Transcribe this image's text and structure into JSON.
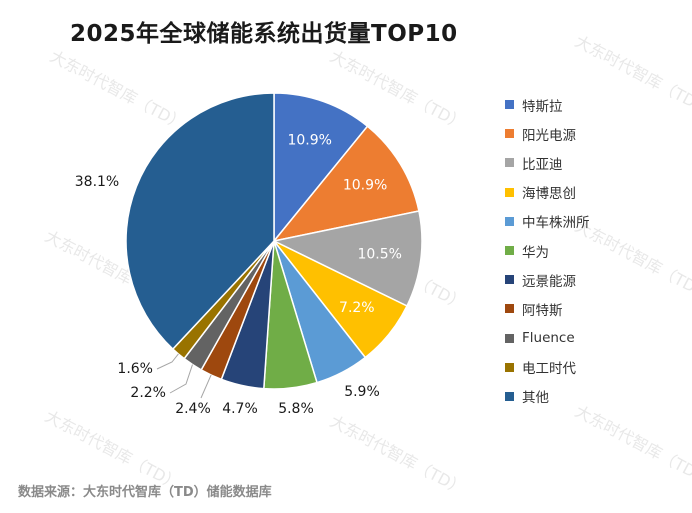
{
  "title": "2025年全球储能系统出货量TOP10",
  "source": "数据来源：大东时代智库（TD）储能数据库",
  "watermark": "大东时代智库（TD）",
  "chart_data": {
    "type": "pie",
    "title": "2025年全球储能系统出货量TOP10",
    "unit": "%",
    "legend_position": "right",
    "slices": [
      {
        "name": "特斯拉",
        "value": 10.9,
        "label": "10.9%",
        "color": "#4472C4"
      },
      {
        "name": "阳光电源",
        "value": 10.9,
        "label": "10.9%",
        "color": "#ED7D31"
      },
      {
        "name": "比亚迪",
        "value": 10.5,
        "label": "10.5%",
        "color": "#A5A5A5"
      },
      {
        "name": "海博思创",
        "value": 7.2,
        "label": "7.2%",
        "color": "#FFC000"
      },
      {
        "name": "中车株洲所",
        "value": 5.9,
        "label": "5.9%",
        "color": "#5B9BD5"
      },
      {
        "name": "华为",
        "value": 5.8,
        "label": "5.8%",
        "color": "#70AD47"
      },
      {
        "name": "远景能源",
        "value": 4.7,
        "label": "4.7%",
        "color": "#264478"
      },
      {
        "name": "阿特斯",
        "value": 2.4,
        "label": "2.4%",
        "color": "#9E480E"
      },
      {
        "name": "Fluence",
        "value": 2.2,
        "label": "2.2%",
        "color": "#636363"
      },
      {
        "name": "电工时代",
        "value": 1.6,
        "label": "1.6%",
        "color": "#997300"
      },
      {
        "name": "其他",
        "value": 38.1,
        "label": "38.1%",
        "color": "#255E91"
      }
    ]
  }
}
